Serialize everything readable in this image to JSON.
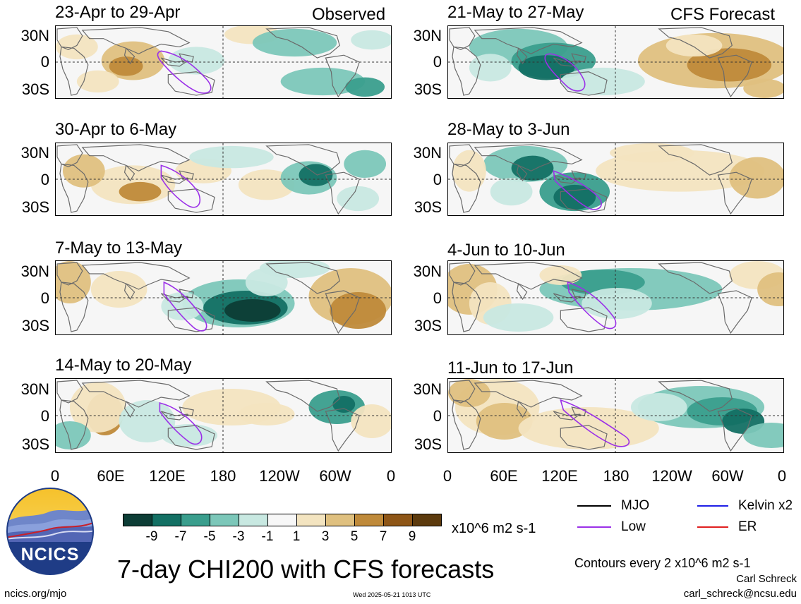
{
  "panels": [
    {
      "id": "obs1",
      "title": "23-Apr to 29-Apr",
      "header": "Observed"
    },
    {
      "id": "fc1",
      "title": "21-May to 27-May",
      "header": "CFS Forecast"
    },
    {
      "id": "obs2",
      "title": "30-Apr to 6-May"
    },
    {
      "id": "fc2",
      "title": "28-May to 3-Jun"
    },
    {
      "id": "obs3",
      "title": "7-May to 13-May"
    },
    {
      "id": "fc3",
      "title": "4-Jun to 10-Jun"
    },
    {
      "id": "obs4",
      "title": "14-May to 20-May"
    },
    {
      "id": "fc4",
      "title": "11-Jun to 17-Jun"
    }
  ],
  "lat_labels": [
    "30N",
    "0",
    "30S"
  ],
  "lon_labels": [
    "0",
    "60E",
    "120E",
    "180",
    "120W",
    "60W",
    "0"
  ],
  "colorbar": {
    "labels": [
      "-9",
      "-7",
      "-5",
      "-3",
      "-1",
      "1",
      "3",
      "5",
      "7",
      "9"
    ],
    "units": "x10^6 m2 s-1",
    "colors": [
      "#0d3d36",
      "#137064",
      "#3a9e8d",
      "#7cc7b9",
      "#c8e8e1",
      "#f7f7f7",
      "#f3e4c0",
      "#dfc07f",
      "#bf8a3a",
      "#8e5617",
      "#5c3a0d"
    ]
  },
  "legend": {
    "items": [
      {
        "label": "MJO",
        "color": "#000000"
      },
      {
        "label": "Kelvin x2",
        "color": "#1f1fe6"
      },
      {
        "label": "Low",
        "color": "#9b30e8"
      },
      {
        "label": "ER",
        "color": "#e02020"
      }
    ],
    "contours_note": "Contours every 2 x10^6 m2 s-1"
  },
  "logo": {
    "text": "NCICS"
  },
  "main_title": "7-day CHI200 with CFS forecasts",
  "footer": {
    "url": "ncics.org/mjo",
    "timestamp": "Wed 2025-05-21 1013 UTC",
    "author": "Carl Schreck",
    "email": "carl_schreck@ncsu.edu"
  }
}
